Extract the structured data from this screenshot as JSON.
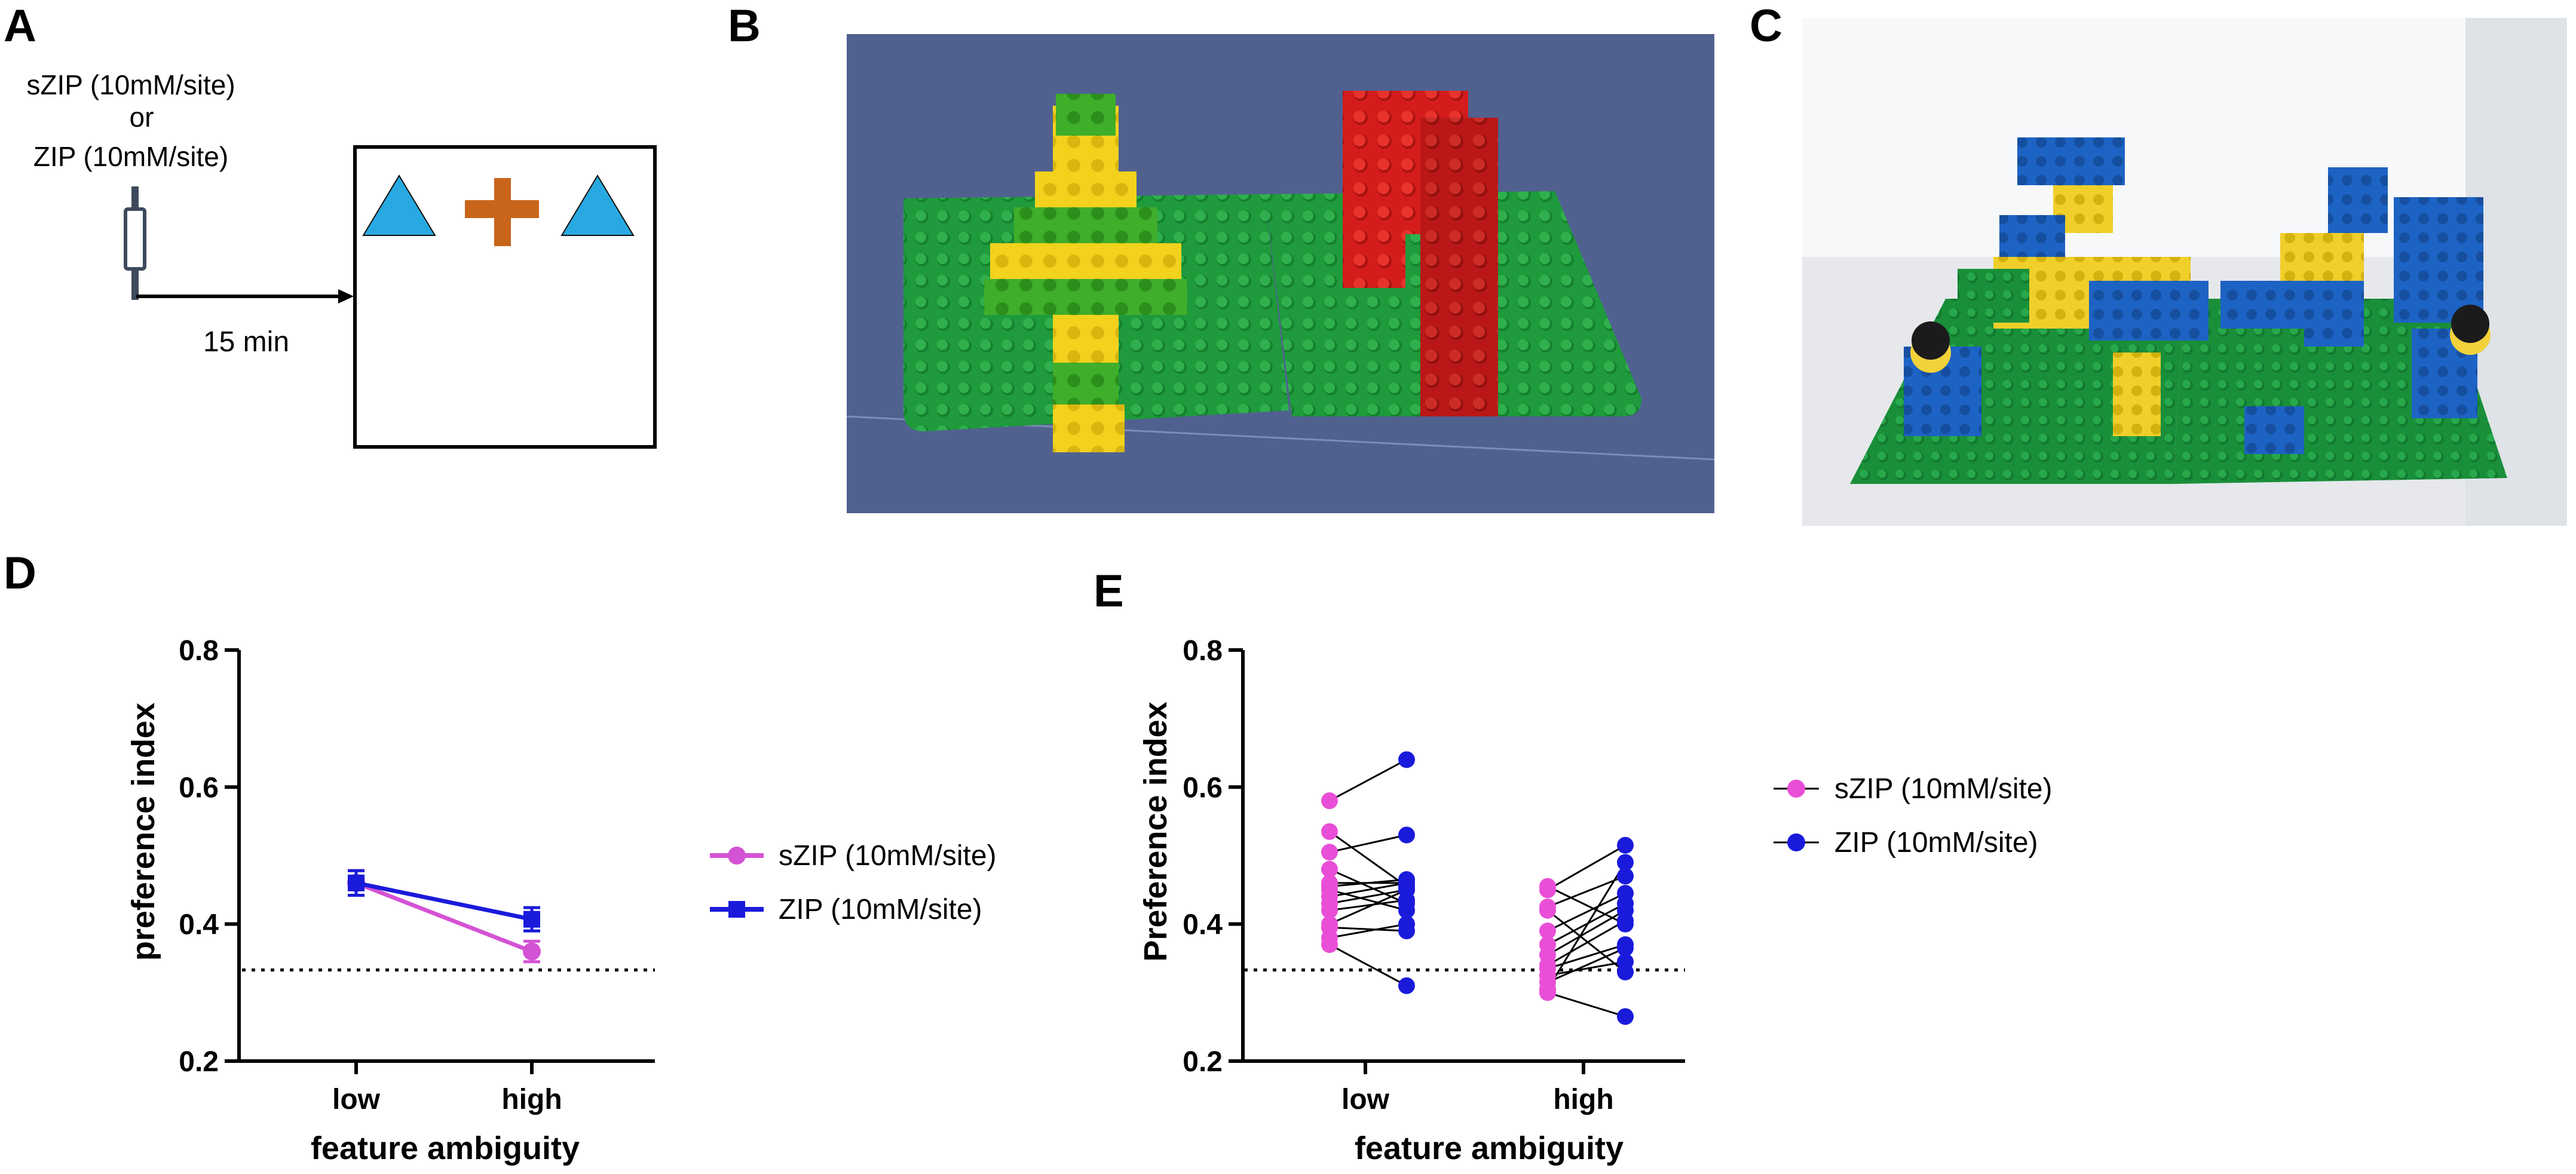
{
  "panels": {
    "A": "A",
    "B": "B",
    "C": "C",
    "D": "D",
    "E": "E"
  },
  "schematic": {
    "drug_line1": "sZIP (10mM/site)",
    "drug_or": "or",
    "drug_line2": "ZIP (10mM/site)",
    "delay_label": "15 min",
    "colors": {
      "triangle": "#29a9e1",
      "cross": "#c8651b"
    }
  },
  "colors": {
    "szip": "#d453d4",
    "zip": "#1a1adb",
    "pair_line": "#000000",
    "reference_line": "#000000"
  },
  "chart_data": [
    {
      "panel": "D",
      "type": "line",
      "xlabel": "feature ambiguity",
      "ylabel": "preference index",
      "categories": [
        "low",
        "high"
      ],
      "ylim": [
        0.2,
        0.8
      ],
      "yticks": [
        "0.2",
        "0.4",
        "0.6",
        "0.8"
      ],
      "reference_line": 0.333,
      "legend_position": "right",
      "series": [
        {
          "name": "sZIP (10mM/site)",
          "marker": "circle",
          "values": [
            0.46,
            0.36
          ],
          "errors": [
            0.018,
            0.015
          ]
        },
        {
          "name": "ZIP (10mM/site)",
          "marker": "square",
          "values": [
            0.46,
            0.407
          ],
          "errors": [
            0.018,
            0.017
          ]
        }
      ]
    },
    {
      "panel": "E",
      "type": "scatter",
      "xlabel": "feature ambiguity",
      "ylabel": "Preference index",
      "categories": [
        "low",
        "high"
      ],
      "ylim": [
        0.2,
        0.8
      ],
      "yticks": [
        "0.2",
        "0.4",
        "0.6",
        "0.8"
      ],
      "reference_line": 0.333,
      "legend_position": "right",
      "series": [
        {
          "name": "sZIP (10mM/site)",
          "marker": "circle"
        },
        {
          "name": "ZIP (10mM/site)",
          "marker": "circle"
        }
      ],
      "paired_points": {
        "low": [
          [
            0.58,
            0.64
          ],
          [
            0.535,
            0.455
          ],
          [
            0.505,
            0.53
          ],
          [
            0.48,
            0.43
          ],
          [
            0.46,
            0.46
          ],
          [
            0.455,
            0.465
          ],
          [
            0.45,
            0.42
          ],
          [
            0.44,
            0.46
          ],
          [
            0.43,
            0.45
          ],
          [
            0.42,
            0.435
          ],
          [
            0.4,
            0.45
          ],
          [
            0.395,
            0.39
          ],
          [
            0.38,
            0.4
          ],
          [
            0.37,
            0.31
          ]
        ],
        "high": [
          [
            0.455,
            0.4
          ],
          [
            0.45,
            0.515
          ],
          [
            0.425,
            0.47
          ],
          [
            0.42,
            0.33
          ],
          [
            0.39,
            0.445
          ],
          [
            0.37,
            0.43
          ],
          [
            0.355,
            0.42
          ],
          [
            0.34,
            0.405
          ],
          [
            0.335,
            0.37
          ],
          [
            0.325,
            0.345
          ],
          [
            0.315,
            0.365
          ],
          [
            0.305,
            0.49
          ],
          [
            0.3,
            0.265
          ]
        ]
      }
    }
  ]
}
